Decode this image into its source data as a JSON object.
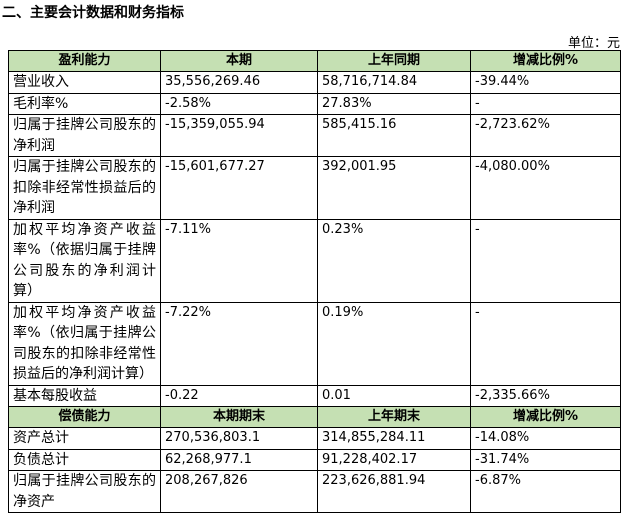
{
  "header": {
    "title": "二、主要会计数据和财务指标",
    "unit": "单位：元"
  },
  "table": {
    "sections": [
      {
        "header": [
          "盈利能力",
          "本期",
          "上年同期",
          "增减比例%"
        ],
        "rows": [
          [
            "营业收入",
            "35,556,269.46",
            "58,716,714.84",
            "-39.44%"
          ],
          [
            "毛利率%",
            "-2.58%",
            "27.83%",
            "-"
          ],
          [
            "归属于挂牌公司股东的净利润",
            "-15,359,055.94",
            "585,415.16",
            "-2,723.62%"
          ],
          [
            "归属于挂牌公司股东的扣除非经常性损益后的净利润",
            "-15,601,677.27",
            "392,001.95",
            "-4,080.00%"
          ],
          [
            "加权平均净资产收益率%（依据归属于挂牌公司股东的净利润计算）",
            "-7.11%",
            "0.23%",
            "-"
          ],
          [
            "加权平均净资产收益率%（依归属于挂牌公司股东的扣除非经常性损益后的净利润计算）",
            "-7.22%",
            "0.19%",
            "-"
          ],
          [
            "基本每股收益",
            "-0.22",
            "0.01",
            "-2,335.66%"
          ]
        ]
      },
      {
        "header": [
          "偿债能力",
          "本期期末",
          "上年期末",
          "增减比例%"
        ],
        "rows": [
          [
            "资产总计",
            "270,536,803.1",
            "314,855,284.11",
            "-14.08%"
          ],
          [
            "负债总计",
            "62,268,977.1",
            "91,228,402.17",
            "-31.74%"
          ],
          [
            "归属于挂牌公司股东的净资产",
            "208,267,826",
            "223,626,881.94",
            "-6.87%"
          ]
        ]
      }
    ]
  }
}
